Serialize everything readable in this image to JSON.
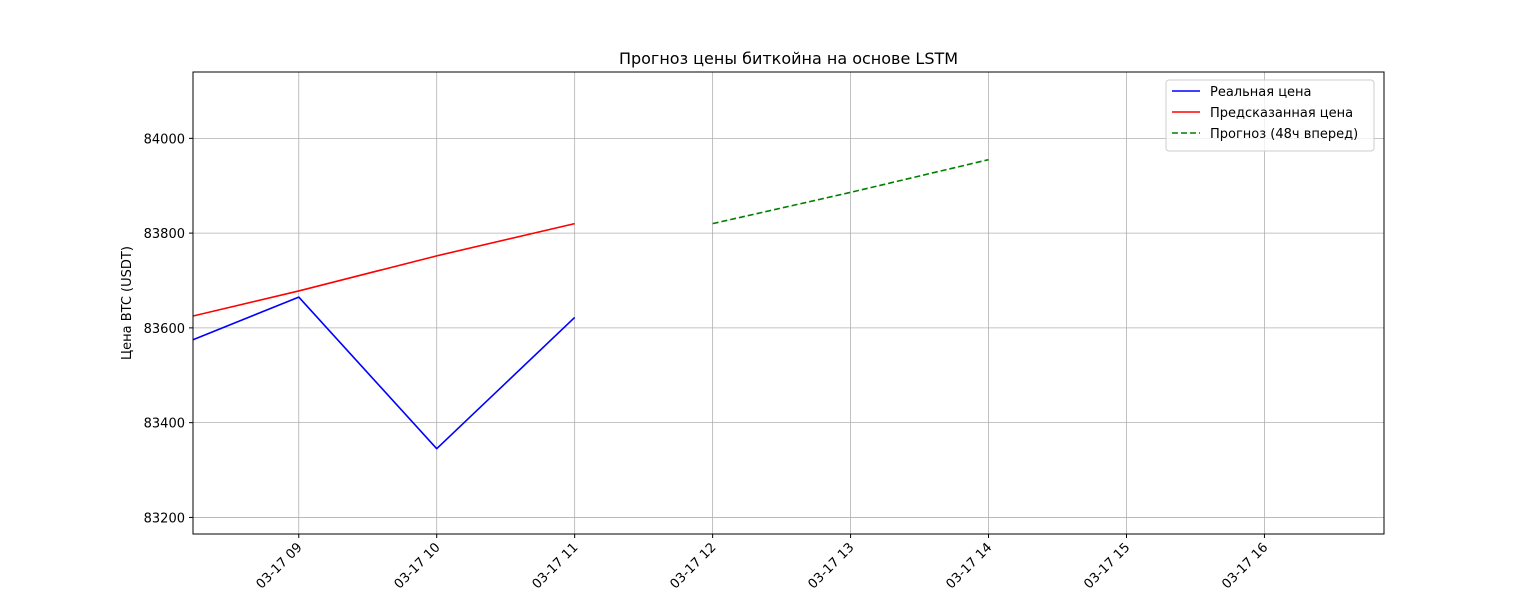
{
  "chart_data": {
    "type": "line",
    "title": "Прогноз цены биткойна на основе LSTM",
    "xlabel": "",
    "ylabel": "Цена BTC (USDT)",
    "x_ticks": [
      "03-17 09",
      "03-17 10",
      "03-17 11",
      "03-17 12",
      "03-17 13",
      "03-17 14",
      "03-17 15",
      "03-17 16"
    ],
    "y_ticks": [
      83200,
      83400,
      83600,
      83800,
      84000
    ],
    "xlim": [
      "03-17 08:14",
      "03-17 16:52"
    ],
    "ylim": [
      83165,
      84140
    ],
    "grid": true,
    "legend_position": "top-right",
    "series": [
      {
        "name": "Реальная цена",
        "color": "#0000ff",
        "style": "solid",
        "points": [
          {
            "x": "03-17 08:14",
            "y": 83575
          },
          {
            "x": "03-17 09:00",
            "y": 83665
          },
          {
            "x": "03-17 10:00",
            "y": 83345
          },
          {
            "x": "03-17 11:00",
            "y": 83622
          }
        ]
      },
      {
        "name": "Предсказанная цена",
        "color": "#ff0000",
        "style": "solid",
        "points": [
          {
            "x": "03-17 08:14",
            "y": 83625
          },
          {
            "x": "03-17 09:00",
            "y": 83678
          },
          {
            "x": "03-17 10:00",
            "y": 83752
          },
          {
            "x": "03-17 11:00",
            "y": 83820
          }
        ]
      },
      {
        "name": "Прогноз (48ч вперед)",
        "color": "#008000",
        "style": "dashed",
        "points": [
          {
            "x": "03-17 12:00",
            "y": 83820
          },
          {
            "x": "03-17 13:00",
            "y": 83886
          },
          {
            "x": "03-17 14:00",
            "y": 83955
          }
        ]
      }
    ]
  }
}
